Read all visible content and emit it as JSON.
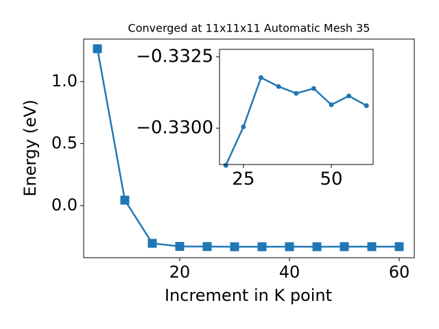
{
  "chart_data": [
    {
      "type": "line",
      "title": "Converged at 11x11x11 Automatic Mesh 35",
      "x_label": "Increment in K point",
      "y_label": "Energy (eV)",
      "x": [
        5,
        10,
        15,
        20,
        25,
        30,
        35,
        40,
        45,
        50,
        55,
        60
      ],
      "values": [
        1.265,
        0.044,
        -0.304,
        -0.3287,
        -0.33005,
        -0.33177,
        -0.33146,
        -0.33122,
        -0.33139,
        -0.33082,
        -0.33113,
        -0.33079
      ],
      "color": "#1f77b4",
      "marker": "square",
      "xlim": [
        2.5,
        62.75
      ],
      "ylim": [
        -0.42,
        1.343
      ],
      "xticks": [
        20,
        40,
        60
      ],
      "yticks": [
        {
          "value": 0,
          "label": "0.0"
        },
        0.5,
        {
          "value": 1,
          "label": "1.0"
        }
      ]
    },
    {
      "type": "line",
      "x": [
        20,
        25,
        30,
        35,
        40,
        45,
        50,
        55,
        60
      ],
      "values": [
        -0.3287,
        -0.33005,
        -0.33177,
        -0.33146,
        -0.33122,
        -0.33139,
        -0.33082,
        -0.33113,
        -0.33079
      ],
      "color": "#1f77b4",
      "marker": "circle",
      "xlim": [
        18.2,
        61.9
      ],
      "ylim": [
        -0.32873,
        -0.33276
      ],
      "xticks": [
        25,
        50
      ],
      "yticks": [
        {
          "value": -0.33,
          "label": "−0.3300"
        },
        {
          "value": -0.3325,
          "label": "−0.3325"
        }
      ]
    }
  ]
}
